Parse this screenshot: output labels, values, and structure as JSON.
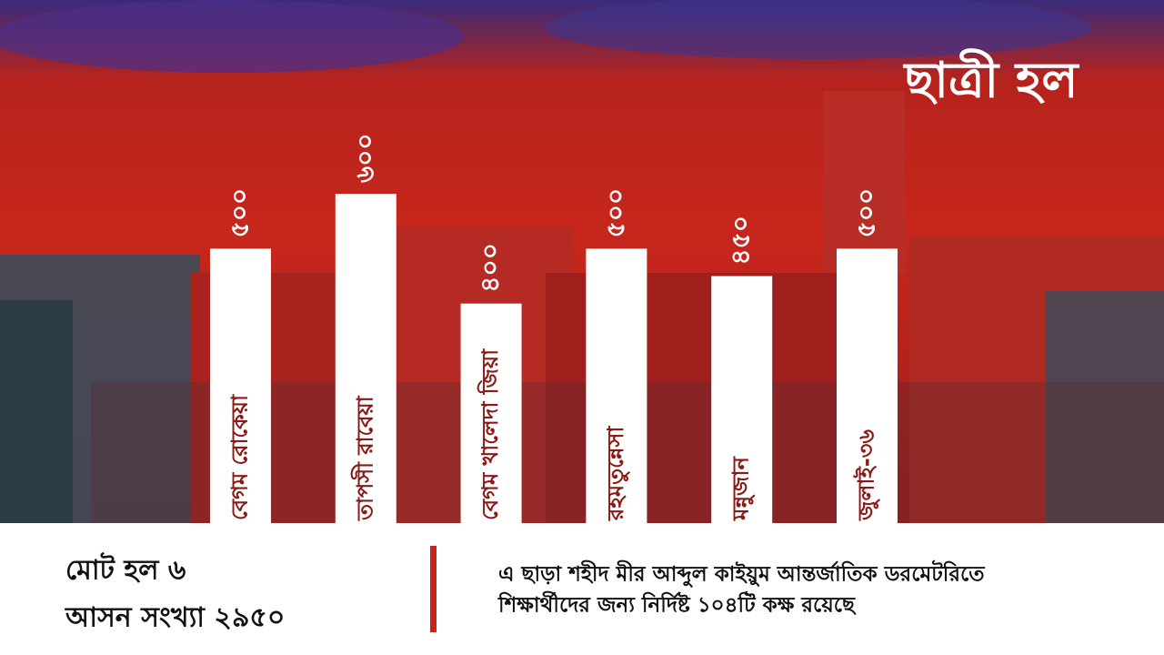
{
  "chart_data": {
    "type": "bar",
    "title": "ছাত্রী হল",
    "categories": [
      "বেগম রোকেয়া",
      "তাপসী রাবেয়া",
      "বেগম খালেদা জিয়া",
      "রহমতুন্নেসা",
      "মন্নুজান",
      "জুলাই-৩৬"
    ],
    "values": [
      500,
      600,
      400,
      500,
      450,
      500
    ],
    "value_labels": [
      "৫০০",
      "৬০০",
      "৪০০",
      "৫০০",
      "৪৫০",
      "৫০০"
    ],
    "color": "#ffffff"
  },
  "summary": [
    "মোট হল ৬",
    "আসন সংখ্যা ২৯৫০"
  ],
  "note": [
    "এ ছাড়া শহীদ মীর আব্দুল কাইয়ুম আন্তর্জাতিক ডরমেটরিতে",
    "শিক্ষার্থীদের জন্য নির্দিষ্ট ১০৪টি কক্ষ রয়েছে"
  ]
}
